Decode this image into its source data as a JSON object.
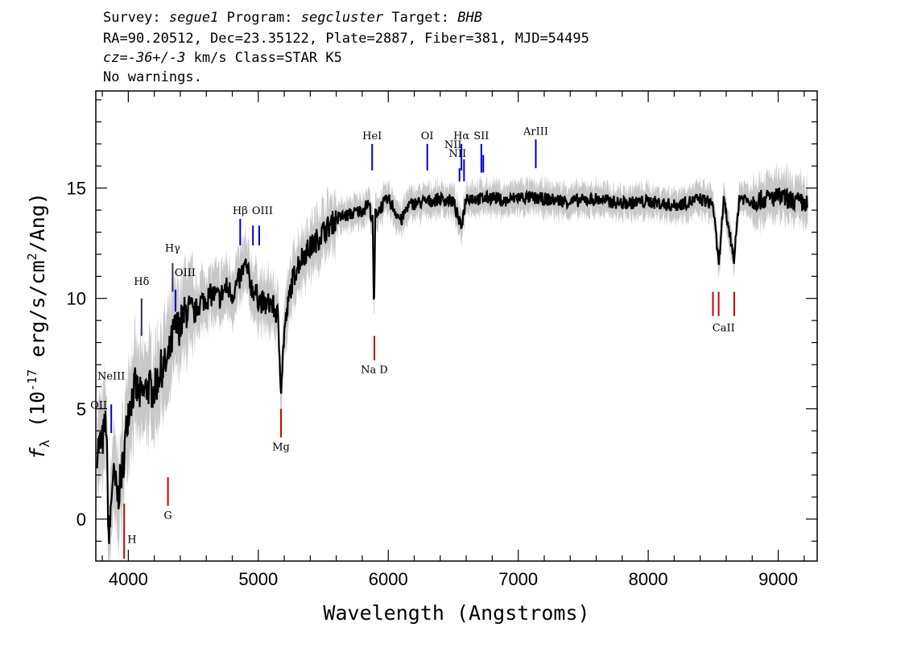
{
  "header": {
    "survey_label": "Survey:",
    "survey_value": "segue1",
    "program_label": "Program:",
    "program_value": "segcluster",
    "target_label": "Target:",
    "target_value": "BHB",
    "line2": "RA=90.20512, Dec=23.35122, Plate=2887, Fiber=381, MJD=54495",
    "cz_label": "cz=",
    "cz_value": "-36+/-3",
    "cz_unit_class": " km/s Class=STAR K5",
    "line4": "No warnings."
  },
  "chart_data": {
    "type": "line",
    "title": "",
    "xlabel": "Wavelength (Angstroms)",
    "ylabel": "f_λ (10^-17 erg/s/cm^2/Ang)",
    "xlim": [
      3750,
      9300
    ],
    "ylim": [
      -1.9,
      19.4
    ],
    "xticks": [
      4000,
      5000,
      6000,
      7000,
      8000,
      9000
    ],
    "yticks": [
      0,
      5,
      10,
      15
    ],
    "colors": {
      "flux": "#000000",
      "error_band": "#c8c8c8",
      "emission": "#0000cc",
      "absorption": "#cc0000"
    },
    "series": [
      {
        "name": "flux",
        "x": [
          3760,
          3800,
          3830,
          3850,
          3880,
          3920,
          3960,
          4000,
          4050,
          4100,
          4150,
          4200,
          4250,
          4300,
          4350,
          4400,
          4450,
          4500,
          4550,
          4600,
          4650,
          4700,
          4750,
          4800,
          4850,
          4900,
          4950,
          5000,
          5050,
          5100,
          5150,
          5175,
          5200,
          5250,
          5300,
          5350,
          5400,
          5500,
          5600,
          5700,
          5800,
          5850,
          5880,
          5890,
          5900,
          5950,
          6000,
          6050,
          6100,
          6150,
          6200,
          6300,
          6400,
          6500,
          6560,
          6600,
          6700,
          6800,
          6900,
          7000,
          7200,
          7400,
          7600,
          7800,
          8000,
          8200,
          8400,
          8498,
          8542,
          8580,
          8662,
          8700,
          8800,
          9000,
          9200
        ],
        "y": [
          3.2,
          3.5,
          4.5,
          -1.2,
          2.0,
          1.0,
          2.5,
          5.0,
          6.0,
          5.5,
          6.0,
          5.8,
          6.8,
          7.0,
          8.5,
          8.8,
          9.5,
          9.2,
          9.8,
          10.0,
          10.2,
          10.0,
          10.5,
          10.2,
          10.8,
          11.5,
          10.5,
          10.0,
          9.7,
          9.8,
          9.2,
          6.0,
          8.5,
          10.5,
          11.5,
          12.0,
          12.3,
          13.0,
          13.6,
          13.8,
          14.0,
          14.3,
          13.5,
          9.0,
          13.8,
          14.2,
          14.5,
          14.0,
          13.5,
          14.2,
          14.3,
          14.4,
          14.5,
          14.4,
          13.2,
          14.6,
          14.5,
          14.6,
          14.4,
          14.6,
          14.5,
          14.4,
          14.5,
          14.3,
          14.4,
          14.2,
          14.5,
          14.3,
          11.5,
          14.4,
          11.8,
          14.6,
          14.4,
          14.6,
          14.3
        ]
      }
    ],
    "lines": [
      {
        "label": "OII",
        "x": 3727,
        "kind": "emission"
      },
      {
        "label": "NeIII",
        "x": 3869,
        "kind": "emission"
      },
      {
        "label": "H",
        "x": 3968,
        "kind": "absorption"
      },
      {
        "label": "Hδ",
        "x": 4102,
        "kind": "emission"
      },
      {
        "label": "G",
        "x": 4305,
        "kind": "absorption"
      },
      {
        "label": "Hγ",
        "x": 4341,
        "kind": "emission"
      },
      {
        "label": "OIII",
        "x": 4363,
        "kind": "emission"
      },
      {
        "label": "Hβ",
        "x": 4861,
        "kind": "emission"
      },
      {
        "label": "OIII",
        "x": 4959,
        "kind": "emission"
      },
      {
        "label": "OIII",
        "x": 5007,
        "kind": "emission"
      },
      {
        "label": "Mg",
        "x": 5175,
        "kind": "absorption"
      },
      {
        "label": "HeI",
        "x": 5876,
        "kind": "emission"
      },
      {
        "label": "Na D",
        "x": 5893,
        "kind": "absorption"
      },
      {
        "label": "OI",
        "x": 6300,
        "kind": "emission"
      },
      {
        "label": "NII",
        "x": 6548,
        "kind": "emission"
      },
      {
        "label": "Hα",
        "x": 6563,
        "kind": "emission"
      },
      {
        "label": "NII",
        "x": 6583,
        "kind": "emission"
      },
      {
        "label": "SII",
        "x": 6716,
        "kind": "emission"
      },
      {
        "label": "SII",
        "x": 6731,
        "kind": "emission"
      },
      {
        "label": "ArIII",
        "x": 7135,
        "kind": "emission"
      },
      {
        "label": "CaII",
        "x": 8498,
        "kind": "absorption"
      },
      {
        "label": "CaII",
        "x": 8542,
        "kind": "absorption"
      },
      {
        "label": "CaII",
        "x": 8662,
        "kind": "absorption"
      }
    ]
  }
}
